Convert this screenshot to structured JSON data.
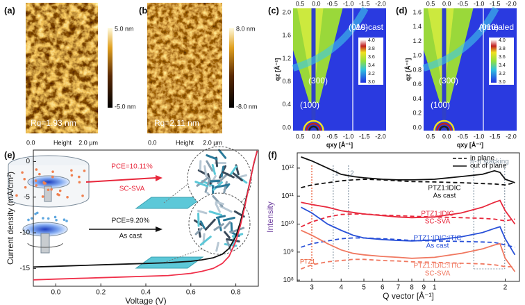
{
  "panels": {
    "a": {
      "label": "(a)",
      "roughness": "Rq=1.93 nm",
      "scale_max": "5.0 nm",
      "scale_min": "-5.0 nm",
      "axis_start": "0.0",
      "axis_title": "Height",
      "axis_end": "2.0 µm"
    },
    "b": {
      "label": "(b)",
      "roughness": "Rq=2.11 nm",
      "scale_max": "8.0 nm",
      "scale_min": "-8.0 nm",
      "axis_start": "0.0",
      "axis_title": "Height",
      "axis_end": "2.0 µm"
    },
    "c": {
      "label": "(c)",
      "state": "As-cast",
      "peaks": [
        "(010)",
        "(300)",
        "(100)"
      ],
      "y_title": "qz [Å⁻¹]",
      "x_title": "qxy [Å⁻¹]",
      "x_ticks": [
        "0.5",
        "0.0",
        "-0.5",
        "-1.0",
        "-1.5",
        "-2.0"
      ],
      "y_ticks": [
        "2.0",
        "1.6",
        "1.2",
        "0.8",
        "0.4",
        "0.0"
      ],
      "colorbar_ticks": [
        "4.0",
        "3.8",
        "3.6",
        "3.4",
        "3.2",
        "3.0"
      ]
    },
    "d": {
      "label": "(d)",
      "state": "Annealed",
      "peaks": [
        "(010)",
        "(300)",
        "(100)"
      ],
      "y_title": "qz [Å⁻¹]",
      "x_title": "qxy [Å⁻¹]",
      "x_ticks": [
        "0.5",
        "0.0",
        "-0.5",
        "-1.0",
        "-1.5",
        "-2.0"
      ],
      "y_ticks": [
        "1.6",
        "1.4",
        "1.2",
        "1.0",
        "0.8",
        "0.6",
        "0.4",
        "0.2",
        "0.0"
      ],
      "colorbar_ticks": [
        "4.0",
        "3.8",
        "3.6",
        "3.4",
        "3.2",
        "3.0"
      ]
    }
  },
  "chart_data": [
    {
      "type": "line",
      "label": "(e)",
      "x_title": "Voltage (V)",
      "y_title": "Current density (mA/cm²)",
      "xlim": [
        -0.1,
        0.9
      ],
      "xticks": [
        {
          "value": 0,
          "label": "0.0"
        },
        0.2,
        0.4,
        0.6,
        0.8
      ],
      "ylim": [
        -17.5,
        1.6
      ],
      "yticks": [
        0,
        -5,
        -10,
        -15
      ],
      "series": [
        {
          "color": "#111111",
          "x": [
            -0.1,
            0,
            0.1,
            0.2,
            0.3,
            0.4,
            0.5,
            0.6,
            0.65,
            0.7,
            0.74,
            0.77,
            0.8,
            0.82,
            0.84,
            0.86,
            0.88,
            0.895
          ],
          "values": [
            -14.8,
            -14.7,
            -14.6,
            -14.5,
            -14.4,
            -14.3,
            -14.2,
            -14.0,
            -13.8,
            -13.5,
            -13.0,
            -12.2,
            -10.5,
            -8.5,
            -6,
            -3.2,
            -0.3,
            1.5
          ]
        },
        {
          "color": "#f0304a",
          "x": [
            -0.1,
            0,
            0.1,
            0.2,
            0.3,
            0.4,
            0.5,
            0.6,
            0.65,
            0.7,
            0.74,
            0.77,
            0.8,
            0.82,
            0.84,
            0.86,
            0.88,
            0.895
          ],
          "values": [
            -16.6,
            -16.5,
            -16.4,
            -16.3,
            -16.2,
            -16.1,
            -16.0,
            -15.7,
            -15.4,
            -15.0,
            -14.3,
            -13.3,
            -11.2,
            -9,
            -6.3,
            -3.3,
            -0.2,
            1.5
          ]
        }
      ],
      "annotations": [
        {
          "text": "PCE=10.11%",
          "color": "#e8283c"
        },
        {
          "text": "SC-SVA",
          "color": "#e8283c"
        },
        {
          "text": "PCE=9.20%",
          "color": "#111111"
        },
        {
          "text": "As cast",
          "color": "#111111"
        }
      ]
    },
    {
      "type": "line",
      "label": "(f)",
      "x_title": "Q vector [Å⁻¹]",
      "y_title": "Intensity",
      "xscale": "log",
      "yscale": "log",
      "xlim": [
        0.26,
        2.3
      ],
      "ylim": [
        90000000,
        3500000000000
      ],
      "xticks": [
        {
          "value": 0.3,
          "label": "3"
        },
        {
          "value": 0.4,
          "label": "4"
        },
        {
          "value": 0.5,
          "label": "5"
        },
        {
          "value": 0.6,
          "label": "6"
        },
        {
          "value": 0.7,
          "label": "7"
        },
        {
          "value": 0.8,
          "label": "8"
        },
        {
          "value": 0.9,
          "label": "9"
        },
        1,
        2
      ],
      "yticks": [
        {
          "value": 100000000,
          "label": "10⁸"
        },
        {
          "value": 1000000000,
          "label": "10⁹"
        },
        {
          "value": 10000000000,
          "label": "10¹⁰"
        },
        {
          "value": 100000000000,
          "label": "10¹¹"
        },
        {
          "value": 1000000000000,
          "label": "10¹²"
        }
      ],
      "legend": [
        {
          "label": "in plane",
          "dash": true
        },
        {
          "label": "out of plane",
          "dash": false
        }
      ],
      "x": [
        0.27,
        0.3,
        0.35,
        0.4,
        0.45,
        0.5,
        0.6,
        0.7,
        0.8,
        1.0,
        1.3,
        1.6,
        1.8,
        1.9,
        2.0,
        2.2
      ],
      "series": [
        {
          "color": "#111111",
          "dash": true,
          "values": [
            200000000000.0,
            250000000000.0,
            300000000000.0,
            350000000000.0,
            380000000000.0,
            400000000000.0,
            380000000000.0,
            350000000000.0,
            330000000000.0,
            320000000000.0,
            300000000000.0,
            280000000000.0,
            270000000000.0,
            260000000000.0,
            250000000000.0,
            300000000000.0
          ]
        },
        {
          "color": "#111111",
          "dash": false,
          "values": [
            2500000000000.0,
            1800000000000.0,
            1000000000000.0,
            600000000000.0,
            500000000000.0,
            450000000000.0,
            400000000000.0,
            380000000000.0,
            380000000000.0,
            400000000000.0,
            500000000000.0,
            600000000000.0,
            800000000000.0,
            700000000000.0,
            400000000000.0,
            300000000000.0
          ]
        },
        {
          "color": "#e8283c",
          "dash": true,
          "values": [
            8000000000.0,
            12000000000.0,
            18000000000.0,
            22000000000.0,
            23000000000.0,
            23000000000.0,
            21000000000.0,
            20000000000.0,
            19000000000.0,
            18000000000.0,
            17000000000.0,
            16000000000.0,
            15000000000.0,
            14000000000.0,
            13000000000.0,
            15000000000.0
          ]
        },
        {
          "color": "#e8283c",
          "dash": false,
          "values": [
            60000000000.0,
            50000000000.0,
            40000000000.0,
            30000000000.0,
            26000000000.0,
            23000000000.0,
            20000000000.0,
            18000000000.0,
            17000000000.0,
            18000000000.0,
            25000000000.0,
            40000000000.0,
            60000000000.0,
            70000000000.0,
            30000000000.0,
            10000000000.0
          ]
        },
        {
          "color": "#2850d8",
          "dash": true,
          "values": [
            1500000000.0,
            2000000000.0,
            2500000000.0,
            3000000000.0,
            3200000000.0,
            3200000000.0,
            3000000000.0,
            2800000000.0,
            2600000000.0,
            2500000000.0,
            2400000000.0,
            2300000000.0,
            2200000000.0,
            2000000000.0,
            1800000000.0,
            1500000000.0
          ]
        },
        {
          "color": "#2850d8",
          "dash": false,
          "values": [
            40000000000.0,
            25000000000.0,
            10000000000.0,
            6000000000.0,
            4000000000.0,
            3200000000.0,
            2800000000.0,
            2600000000.0,
            2500000000.0,
            2700000000.0,
            3500000000.0,
            5000000000.0,
            7000000000.0,
            8000000000.0,
            3000000000.0,
            800000000.0
          ]
        },
        {
          "color": "#f07860",
          "dash": true,
          "values": [
            250000000.0,
            350000000.0,
            450000000.0,
            500000000.0,
            550000000.0,
            550000000.0,
            500000000.0,
            480000000.0,
            450000000.0,
            430000000.0,
            400000000.0,
            380000000.0,
            350000000.0,
            330000000.0,
            300000000.0,
            300000000.0
          ]
        },
        {
          "color": "#f07860",
          "dash": false,
          "values": [
            6000000000.0,
            4000000000.0,
            2000000000.0,
            1200000000.0,
            900000000.0,
            800000000.0,
            700000000.0,
            650000000.0,
            600000000.0,
            650000000.0,
            900000000.0,
            1300000000.0,
            1800000000.0,
            2000000000.0,
            600000000.0,
            200000000.0
          ]
        }
      ],
      "sample_labels": [
        {
          "lines": [
            "PTZ1:IDIC",
            "As cast"
          ],
          "color": "#111111"
        },
        {
          "lines": [
            "PTZ1:IDIC",
            "SC-SVA"
          ],
          "color": "#e8283c"
        },
        {
          "lines": [
            "PTZ1:IDIC:ITIC",
            "As cast"
          ],
          "color": "#2850d8"
        },
        {
          "lines": [
            "PTZ1:IDIC:ITIC",
            "SC-SVA"
          ],
          "color": "#f07860"
        }
      ],
      "annotations": [
        {
          "text": "PTZ1",
          "x": 0.3,
          "color": "#e8522a"
        },
        {
          "text": "1",
          "x": 0.37,
          "color": "#8a9aa8"
        },
        {
          "text": "2",
          "x": 0.43,
          "color": "#8a9aa8"
        },
        {
          "text": "π-π stacking",
          "x": [
            1.47,
            1.99
          ],
          "color": "#8a9aa8"
        }
      ]
    }
  ]
}
